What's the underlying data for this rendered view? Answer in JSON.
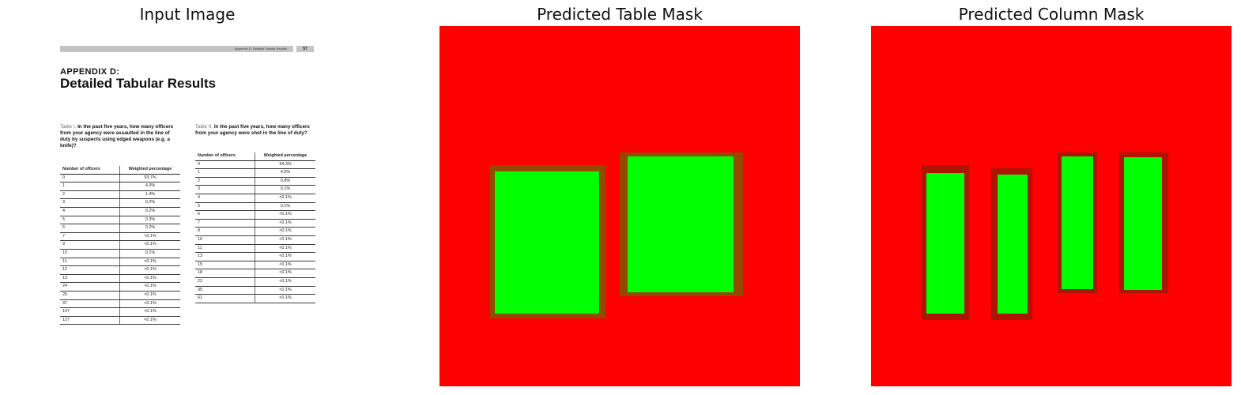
{
  "panels": {
    "input_title": "Input Image",
    "table_mask_title": "Predicted Table Mask",
    "column_mask_title": "Predicted Column Mask"
  },
  "document": {
    "running_header": "Appendix D: Detailed Tabular Results",
    "page_number": "57",
    "kicker": "APPENDIX D:",
    "title": "Detailed Tabular Results",
    "table1": {
      "label": "Table I.",
      "question": "In the past five years, how many officers from your agency were assaulted in the line of duty by suspects using edged weapons (e.g. a knife)?",
      "headers": [
        "Number of officers",
        "Weighted percentage"
      ],
      "rows": [
        [
          "0",
          "93.7%"
        ],
        [
          "1",
          "4.0%"
        ],
        [
          "2",
          "1.4%"
        ],
        [
          "3",
          "0.2%"
        ],
        [
          "4",
          "0.2%"
        ],
        [
          "5",
          "0.3%"
        ],
        [
          "6",
          "0.2%"
        ],
        [
          "7",
          "<0.1%"
        ],
        [
          "9",
          "<0.1%"
        ],
        [
          "10",
          "0.1%"
        ],
        [
          "11",
          "<0.1%"
        ],
        [
          "12",
          "<0.1%"
        ],
        [
          "13",
          "<0.1%"
        ],
        [
          "24",
          "<0.1%"
        ],
        [
          "25",
          "<0.1%"
        ],
        [
          "37",
          "<0.1%"
        ],
        [
          "107",
          "<0.1%"
        ],
        [
          "127",
          "<0.1%"
        ]
      ]
    },
    "table2": {
      "label": "Table II.",
      "question": "In the past five years, how many officers from your agency were shot in the line of duty?",
      "headers": [
        "Number of officers",
        "Weighted percentage"
      ],
      "rows": [
        [
          "0",
          "94.3%"
        ],
        [
          "1",
          "4.5%"
        ],
        [
          "2",
          "0.8%"
        ],
        [
          "3",
          "0.1%"
        ],
        [
          "4",
          "<0.1%"
        ],
        [
          "5",
          "0.1%"
        ],
        [
          "6",
          "<0.1%"
        ],
        [
          "7",
          "<0.1%"
        ],
        [
          "8",
          "<0.1%"
        ],
        [
          "10",
          "<0.1%"
        ],
        [
          "11",
          "<0.1%"
        ],
        [
          "13",
          "<0.1%"
        ],
        [
          "15",
          "<0.1%"
        ],
        [
          "18",
          "<0.1%"
        ],
        [
          "22",
          "<0.1%"
        ],
        [
          "35",
          "<0.1%"
        ],
        [
          "61",
          "<0.1%"
        ]
      ]
    }
  },
  "colors": {
    "mask_background": "#ff0000",
    "mask_foreground": "#00ff00"
  }
}
